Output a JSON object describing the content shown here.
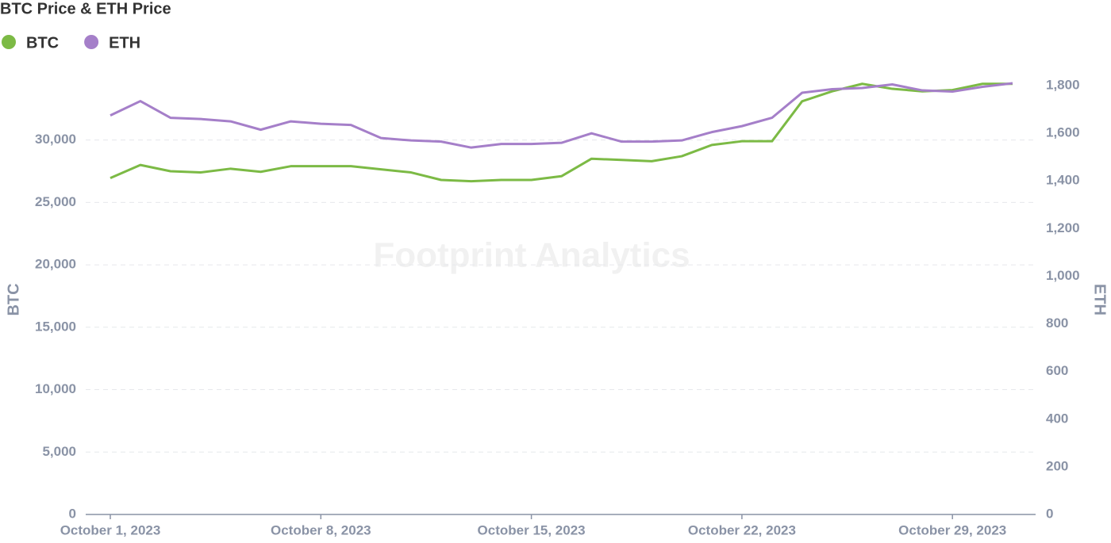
{
  "chart_data": {
    "type": "line",
    "title": "BTC Price & ETH Price",
    "watermark": "Footprint Analytics",
    "ylabel": "BTC",
    "y2label": "ETH",
    "x": [
      "2023-10-01",
      "2023-10-02",
      "2023-10-03",
      "2023-10-04",
      "2023-10-05",
      "2023-10-06",
      "2023-10-07",
      "2023-10-08",
      "2023-10-09",
      "2023-10-10",
      "2023-10-11",
      "2023-10-12",
      "2023-10-13",
      "2023-10-14",
      "2023-10-15",
      "2023-10-16",
      "2023-10-17",
      "2023-10-18",
      "2023-10-19",
      "2023-10-20",
      "2023-10-21",
      "2023-10-22",
      "2023-10-23",
      "2023-10-24",
      "2023-10-25",
      "2023-10-26",
      "2023-10-27",
      "2023-10-28",
      "2023-10-29",
      "2023-10-30",
      "2023-10-31"
    ],
    "xticks": [
      {
        "value": "2023-10-01",
        "label": "October 1, 2023"
      },
      {
        "value": "2023-10-08",
        "label": "October 8, 2023"
      },
      {
        "value": "2023-10-15",
        "label": "October 15, 2023"
      },
      {
        "value": "2023-10-22",
        "label": "October 22, 2023"
      },
      {
        "value": "2023-10-29",
        "label": "October 29, 2023"
      }
    ],
    "series": [
      {
        "name": "BTC",
        "color": "#7cba45",
        "axis": "y",
        "values": [
          26950,
          28000,
          27500,
          27400,
          27700,
          27450,
          27900,
          27900,
          27900,
          27650,
          27400,
          26800,
          26700,
          26800,
          26800,
          27100,
          28500,
          28400,
          28300,
          28700,
          29600,
          29900,
          29900,
          33100,
          33900,
          34500,
          34100,
          33900,
          34000,
          34500,
          34500
        ]
      },
      {
        "name": "ETH",
        "color": "#a57fc9",
        "axis": "y2",
        "values": [
          1675,
          1735,
          1665,
          1660,
          1650,
          1615,
          1650,
          1640,
          1635,
          1580,
          1570,
          1565,
          1540,
          1555,
          1555,
          1560,
          1600,
          1565,
          1565,
          1570,
          1605,
          1630,
          1665,
          1770,
          1785,
          1790,
          1805,
          1780,
          1775,
          1795,
          1810
        ]
      }
    ],
    "ylim": [
      0,
      35500
    ],
    "yticks": [
      0,
      {
        "value": 5000,
        "label": "5,000"
      },
      {
        "value": 10000,
        "label": "10,000"
      },
      {
        "value": 15000,
        "label": "15,000"
      },
      {
        "value": 20000,
        "label": "20,000"
      },
      {
        "value": 25000,
        "label": "25,000"
      },
      {
        "value": 30000,
        "label": "30,000"
      }
    ],
    "y2lim": [
      0,
      1860
    ],
    "y2ticks": [
      0,
      200,
      400,
      600,
      800,
      {
        "value": 1000,
        "label": "1,000"
      },
      {
        "value": 1200,
        "label": "1,200"
      },
      {
        "value": 1400,
        "label": "1,400"
      },
      {
        "value": 1600,
        "label": "1,600"
      },
      {
        "value": 1800,
        "label": "1,800"
      }
    ],
    "grid": true,
    "legend": "top-left"
  }
}
